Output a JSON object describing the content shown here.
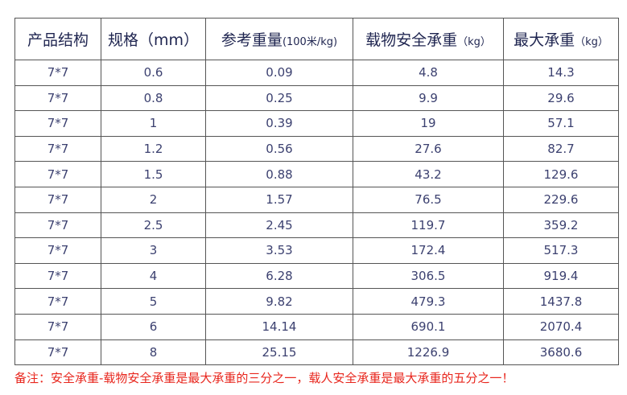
{
  "table": {
    "headers": [
      {
        "text": "产品结构"
      },
      {
        "text": "规格（mm）"
      },
      {
        "text": "参考重量",
        "unit": "(100米/kg)"
      },
      {
        "text": "载物安全承重",
        "unit": "（kg）"
      },
      {
        "text": "最大承重",
        "unit": "（kg）"
      }
    ],
    "rows": [
      [
        "7*7",
        "0.6",
        "0.09",
        "4.8",
        "14.3"
      ],
      [
        "7*7",
        "0.8",
        "0.25",
        "9.9",
        "29.6"
      ],
      [
        "7*7",
        "1",
        "0.39",
        "19",
        "57.1"
      ],
      [
        "7*7",
        "1.2",
        "0.56",
        "27.6",
        "82.7"
      ],
      [
        "7*7",
        "1.5",
        "0.88",
        "43.2",
        "129.6"
      ],
      [
        "7*7",
        "2",
        "1.57",
        "76.5",
        "229.6"
      ],
      [
        "7*7",
        "2.5",
        "2.45",
        "119.7",
        "359.2"
      ],
      [
        "7*7",
        "3",
        "3.53",
        "172.4",
        "517.3"
      ],
      [
        "7*7",
        "4",
        "6.28",
        "306.5",
        "919.4"
      ],
      [
        "7*7",
        "5",
        "9.82",
        "479.3",
        "1437.8"
      ],
      [
        "7*7",
        "6",
        "14.14",
        "690.1",
        "2070.4"
      ],
      [
        "7*7",
        "8",
        "25.15",
        "1226.9",
        "3680.6"
      ]
    ]
  },
  "note": "备注：安全承重-载物安全承重是最大承重的三分之一，载人安全承重是最大承重的五分之一！"
}
